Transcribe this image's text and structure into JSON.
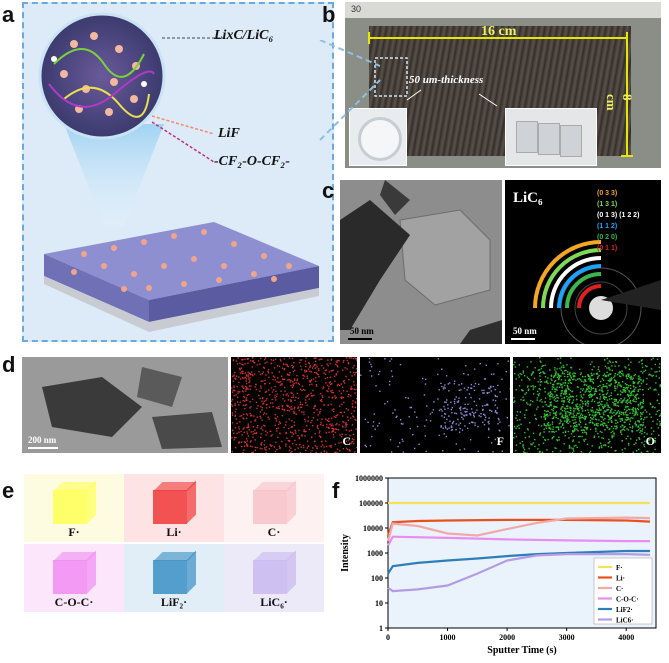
{
  "panels": {
    "a": "a",
    "b": "b",
    "c": "c",
    "d": "d",
    "e": "e",
    "f": "f"
  },
  "panel_a": {
    "ann_lixc": "LixC/LiC₆",
    "ann_lif": "LiF",
    "ann_cfocf": "-CF₂-O-CF₂-"
  },
  "panel_b": {
    "ruler_mark": "30",
    "width_label": "16 cm",
    "height_label": "8 cm",
    "thickness_label": "50 um-thickness"
  },
  "panel_c": {
    "scale_left": "50 nm",
    "scale_right": "50 nm",
    "pattern_title": "LiC₆",
    "rings": [
      {
        "label": "(0 3 3)",
        "color": "#f5a623"
      },
      {
        "label": "(1 3 1)",
        "color": "#7ed957"
      },
      {
        "label": "(0 1 3) (1 2 2)",
        "color": "#ffffff"
      },
      {
        "label": "(1 1 2)",
        "color": "#1aa3ff"
      },
      {
        "label": "(0 2 0)",
        "color": "#3db54a"
      },
      {
        "label": "(0 1 1)",
        "color": "#e02020"
      }
    ]
  },
  "panel_d": {
    "scale": "200 nm",
    "map_c": "C",
    "map_f": "F",
    "map_o": "O"
  },
  "panel_e": {
    "cells": [
      {
        "label": "F·",
        "color": "#ffff55"
      },
      {
        "label": "Li·",
        "color": "#f03838"
      },
      {
        "label": "C·",
        "color": "#f7c2c8"
      },
      {
        "label": "C-O-C·",
        "color": "#f08cf2"
      },
      {
        "label": "LiF₂·",
        "color": "#3a8fc4"
      },
      {
        "label": "LiC₆·",
        "color": "#c9b8f0"
      }
    ]
  },
  "chart_data": {
    "type": "line",
    "title": "",
    "xlabel": "Sputter Time (s)",
    "ylabel": "Intensity",
    "xlim": [
      0,
      4500
    ],
    "ylim": [
      1,
      1000000
    ],
    "yscale": "log",
    "x_ticks": [
      "0",
      "1000",
      "2000",
      "3000",
      "4000"
    ],
    "y_ticks": [
      "1",
      "10",
      "100",
      "1000",
      "10000",
      "100000",
      "1000000"
    ],
    "legend_position": "bottom-right",
    "series": [
      {
        "name": "F·",
        "color": "#f7e15a",
        "x": [
          0,
          4400
        ],
        "y": [
          100000,
          100000
        ]
      },
      {
        "name": "Li·",
        "color": "#e8511f",
        "x": [
          0,
          80,
          500,
          1000,
          2000,
          3000,
          4000,
          4400
        ],
        "y": [
          5000,
          17000,
          19000,
          20000,
          21000,
          21000,
          20000,
          18000
        ]
      },
      {
        "name": "C·",
        "color": "#f3a8a8",
        "x": [
          0,
          80,
          500,
          1000,
          1500,
          2000,
          2500,
          3000,
          4000,
          4400
        ],
        "y": [
          3000,
          15000,
          12000,
          6000,
          5000,
          9000,
          16000,
          24000,
          26000,
          25000
        ]
      },
      {
        "name": "C-O-C·",
        "color": "#e88ef0",
        "x": [
          0,
          80,
          1000,
          2000,
          3000,
          4000,
          4400
        ],
        "y": [
          2000,
          4500,
          4000,
          3500,
          3200,
          3000,
          3000
        ]
      },
      {
        "name": "LiF2·",
        "color": "#2e7fb8",
        "x": [
          0,
          80,
          500,
          1000,
          1500,
          2000,
          2500,
          3000,
          4000,
          4400
        ],
        "y": [
          150,
          300,
          400,
          500,
          600,
          750,
          900,
          1000,
          1200,
          1200
        ]
      },
      {
        "name": "LiC6·",
        "color": "#b49be6",
        "x": [
          0,
          80,
          500,
          1000,
          1500,
          2000,
          2500,
          3000,
          4000,
          4400
        ],
        "y": [
          40,
          30,
          35,
          50,
          150,
          500,
          800,
          900,
          900,
          850
        ]
      }
    ]
  }
}
